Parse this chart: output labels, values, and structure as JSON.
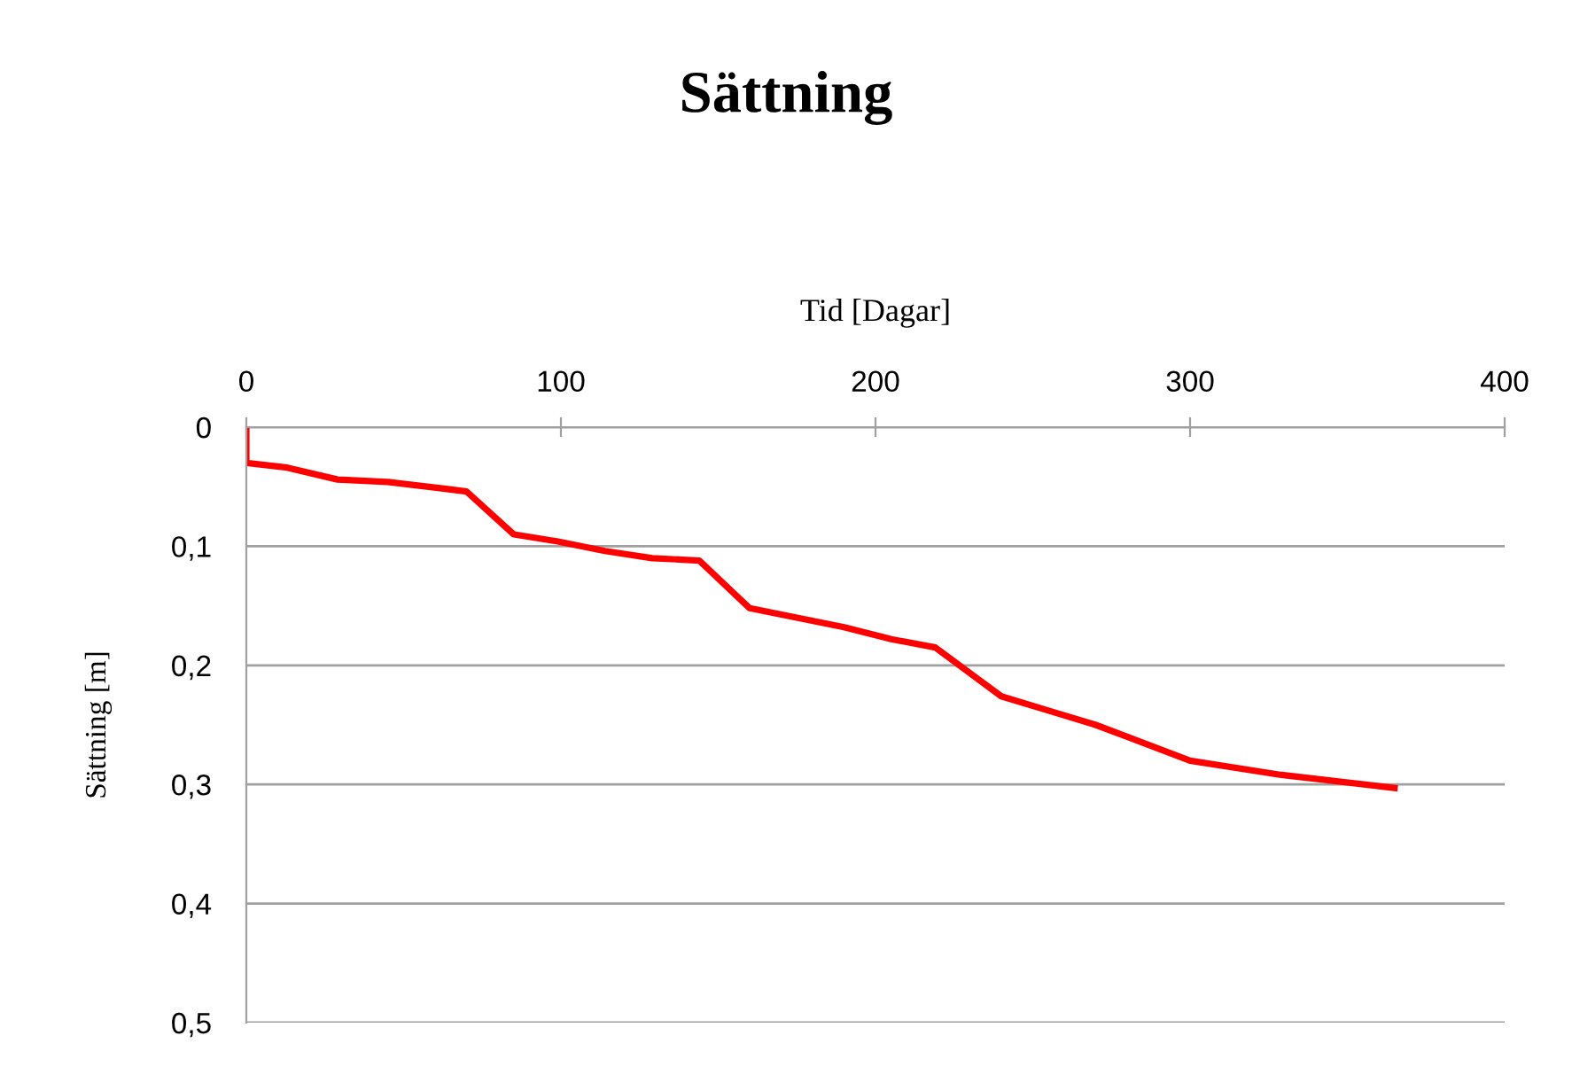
{
  "chart_data": {
    "type": "line",
    "title": "Sättning",
    "xlabel": "Tid [Dagar]",
    "ylabel": "Sättning [m]",
    "series": [
      {
        "color": "#ff0000",
        "x": [
          0,
          0,
          13,
          29,
          45,
          61,
          70,
          85,
          99,
          114,
          129,
          144,
          160,
          175,
          190,
          205,
          219,
          240,
          255,
          270,
          300,
          329,
          365
        ],
        "values": [
          0,
          0.03,
          0.034,
          0.044,
          0.046,
          0.051,
          0.054,
          0.09,
          0.096,
          0.104,
          0.11,
          0.112,
          0.152,
          0.16,
          0.168,
          0.178,
          0.185,
          0.226,
          0.238,
          0.25,
          0.28,
          0.292,
          0.303
        ]
      }
    ],
    "xlim": [
      0,
      400
    ],
    "xticks": [
      0,
      100,
      200,
      300,
      400
    ],
    "ylim": [
      0.5,
      0
    ],
    "yticks": [
      {
        "value": 0,
        "label": "0"
      },
      {
        "value": 0.1,
        "label": "0,1"
      },
      {
        "value": 0.2,
        "label": "0,2"
      },
      {
        "value": 0.3,
        "label": "0,3"
      },
      {
        "value": 0.4,
        "label": "0,4"
      },
      {
        "value": 0.5,
        "label": "0,5"
      }
    ],
    "grid": "y",
    "legend": false,
    "marker": "none",
    "line_style": "solid"
  }
}
